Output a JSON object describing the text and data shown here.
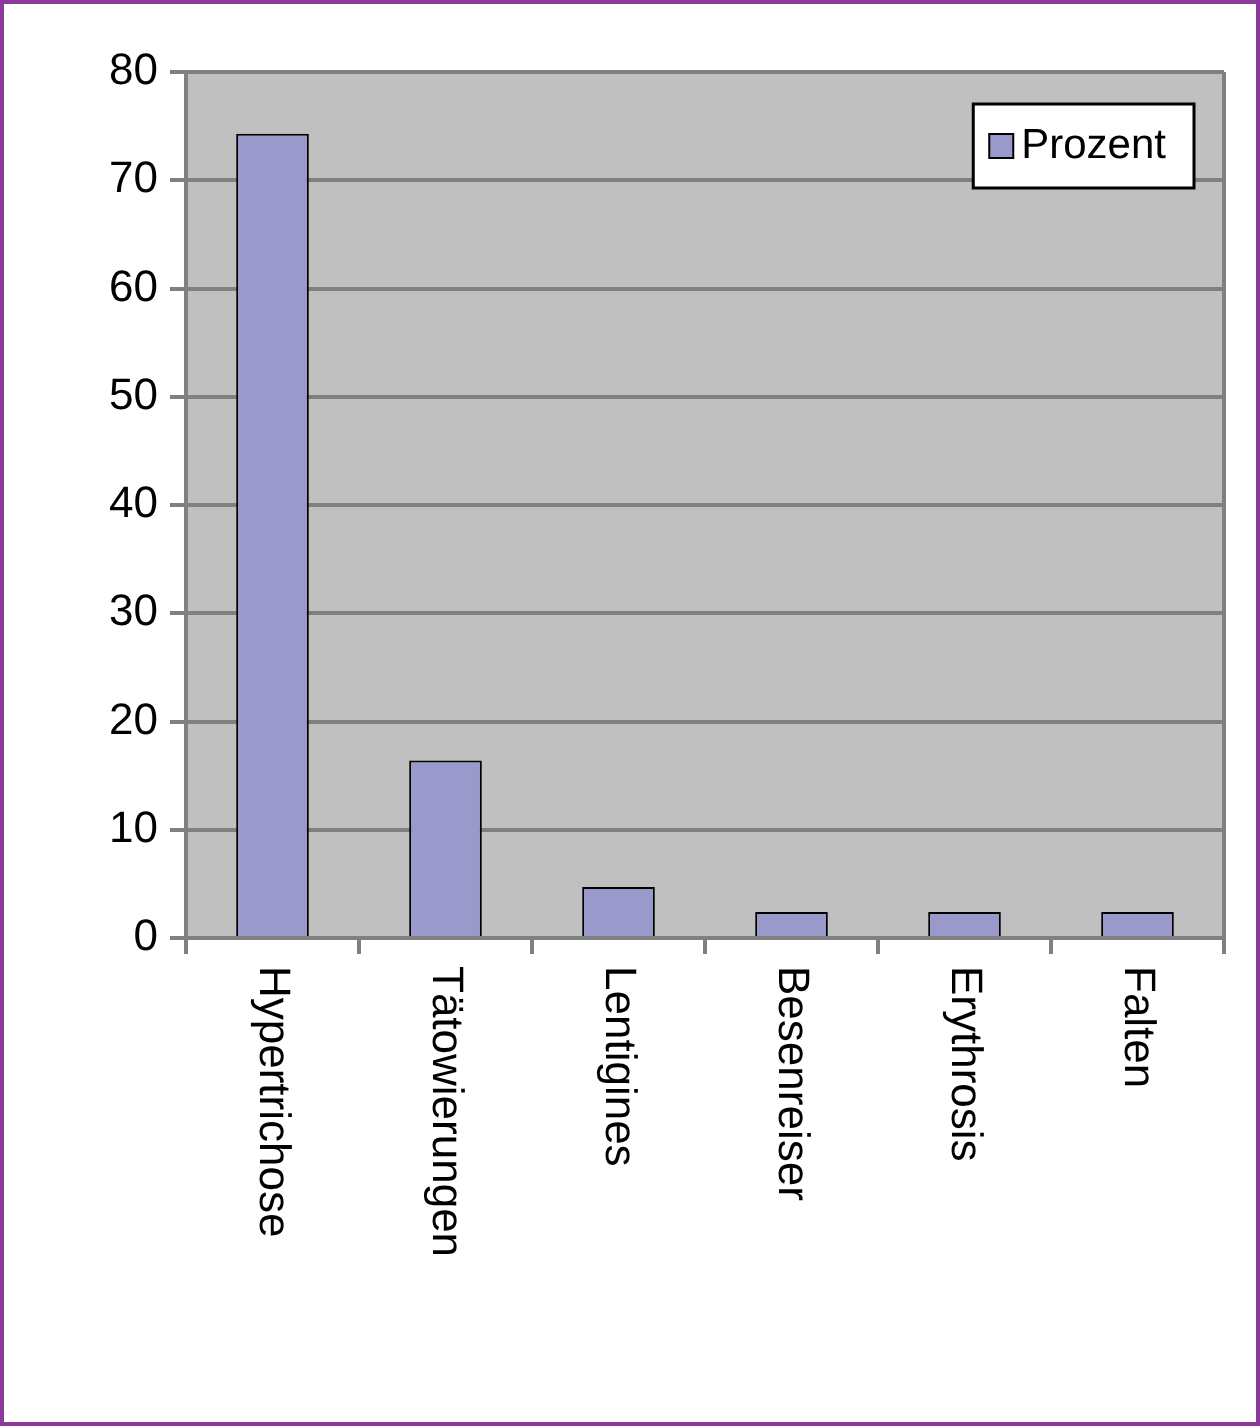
{
  "chart_data": {
    "type": "bar",
    "categories": [
      "Hypertrichose",
      "Tätowierungen",
      "Lentigines",
      "Besenreiser",
      "Erythrosis",
      "Falten"
    ],
    "series": [
      {
        "name": "Prozent",
        "color": "#9999cc",
        "values": [
          74.3,
          16.4,
          4.7,
          2.4,
          2.4,
          2.4
        ]
      }
    ],
    "ylim": [
      0,
      80
    ],
    "yticks": [
      0,
      10,
      20,
      30,
      40,
      50,
      60,
      70,
      80
    ],
    "grid": "y",
    "legend": "top right"
  }
}
